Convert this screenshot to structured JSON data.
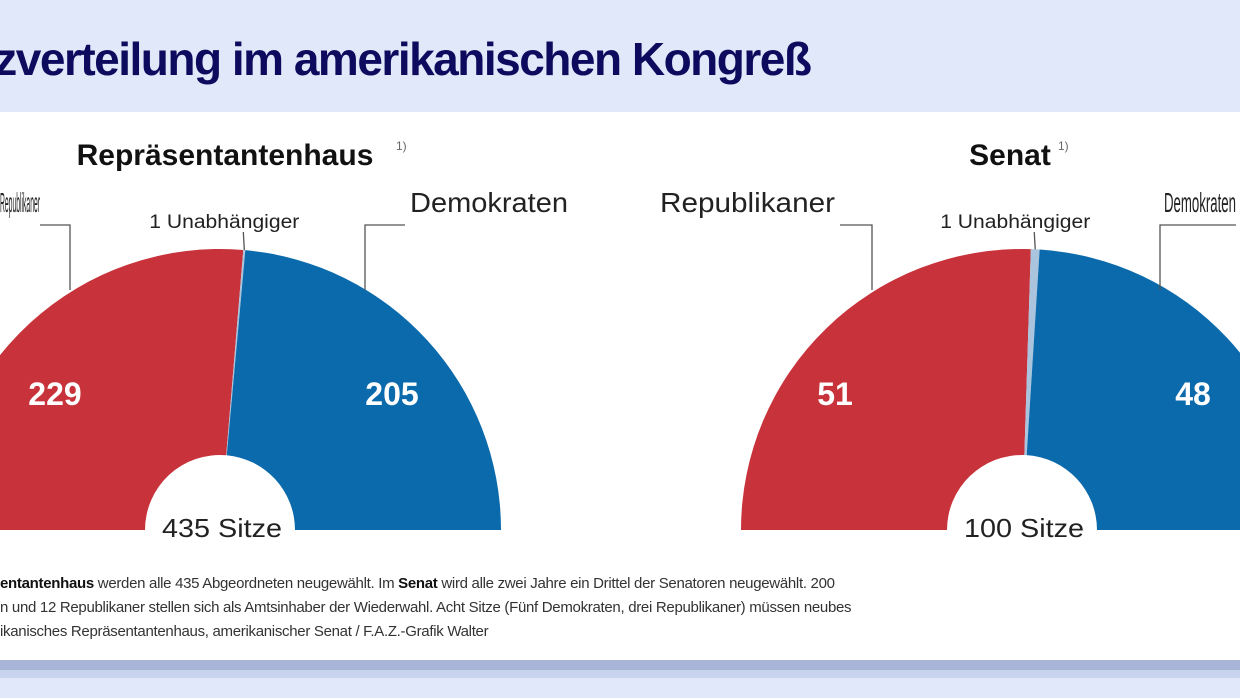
{
  "title": "Sitzverteilung im amerikanischen Kongreß",
  "colors": {
    "republicans": "#c8323a",
    "democrats": "#0b6aab",
    "independent": "#a9c4dc"
  },
  "chart_data": [
    {
      "type": "pie",
      "shape": "semicircle",
      "title": "Repräsentantenhaus",
      "title_note": "1)",
      "total_label": "435 Sitze",
      "slices": [
        {
          "name": "Republikaner",
          "value": 229,
          "label": "229"
        },
        {
          "name": "1 Unabhängiger",
          "value": 1
        },
        {
          "name": "Demokraten",
          "value": 205,
          "label": "205"
        }
      ]
    },
    {
      "type": "pie",
      "shape": "semicircle",
      "title": "Senat",
      "title_note": "1)",
      "total_label": "100 Sitze",
      "slices": [
        {
          "name": "Republikaner",
          "value": 51,
          "label": "51"
        },
        {
          "name": "1 Unabhängiger",
          "value": 1
        },
        {
          "name": "Demokraten",
          "value": 48,
          "label": "48"
        }
      ]
    }
  ],
  "footnote": {
    "line1_bold1": "entantenhaus",
    "line1_a": " werden alle 435 Abgeordneten neugewählt. Im ",
    "line1_bold2": "Senat",
    "line1_b": " wird alle zwei Jahre ein Drittel der Senatoren neugewählt. 200",
    "line2": "n und 12 Republikaner stellen sich als Amtsinhaber der Wiederwahl. Acht Sitze (Fünf Demokraten, drei Republikaner) müssen neubes",
    "line3": "ikanisches Repräsentantenhaus, amerikanischer Senat / F.A.Z.-Grafik Walter"
  }
}
